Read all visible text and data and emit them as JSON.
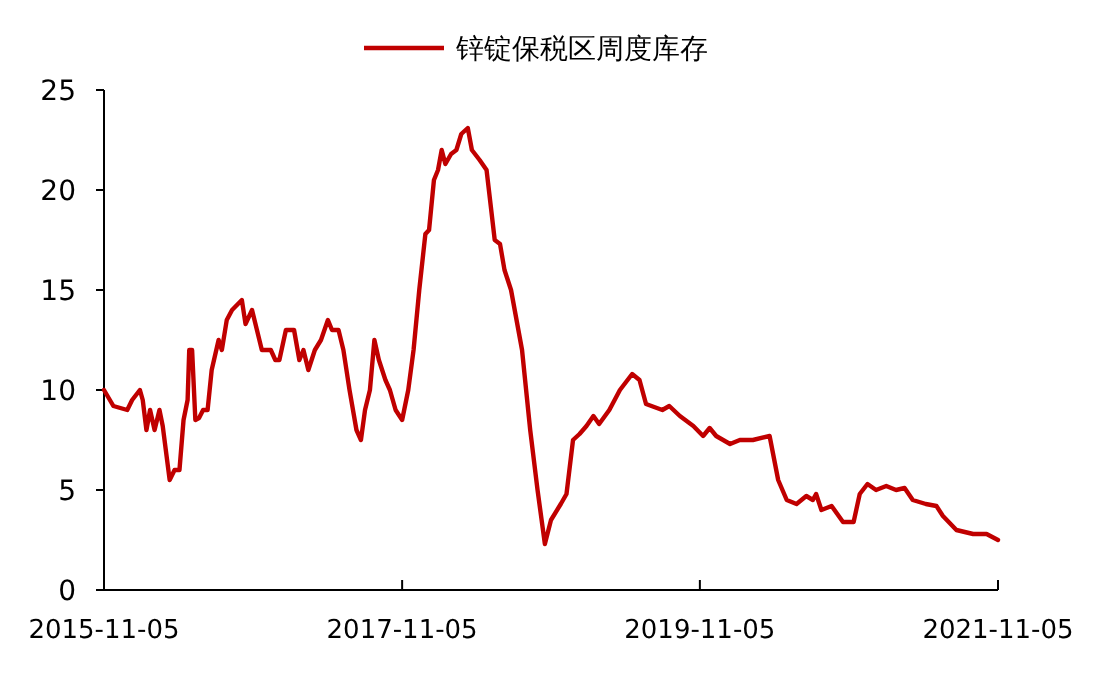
{
  "chart_data": {
    "type": "line",
    "legend": "top",
    "xlim": [
      "2015-11-05",
      "2021-11-05"
    ],
    "xticks": [
      "2015-11-05",
      "2017-11-05",
      "2019-11-05",
      "2021-11-05"
    ],
    "ylim": [
      0,
      25
    ],
    "yticks": [
      0,
      5,
      10,
      15,
      20,
      25
    ],
    "grid": false,
    "line_style": "solid",
    "marker": "none",
    "series": [
      {
        "name": "锌锭保税区周度库存",
        "color": "#c00000",
        "x": [
          "2015-11-05",
          "2015-11-28",
          "2016-01-01",
          "2016-01-13",
          "2016-02-01",
          "2016-02-08",
          "2016-02-17",
          "2016-02-26",
          "2016-03-08",
          "2016-03-20",
          "2016-03-28",
          "2016-04-14",
          "2016-04-26",
          "2016-05-08",
          "2016-05-18",
          "2016-05-28",
          "2016-06-01",
          "2016-06-08",
          "2016-06-16",
          "2016-06-25",
          "2016-07-05",
          "2016-07-16",
          "2016-07-26",
          "2016-08-12",
          "2016-08-20",
          "2016-09-01",
          "2016-09-14",
          "2016-10-08",
          "2016-10-17",
          "2016-11-02",
          "2016-11-14",
          "2016-11-26",
          "2016-12-18",
          "2016-12-29",
          "2017-01-08",
          "2017-01-24",
          "2017-02-13",
          "2017-02-26",
          "2017-03-08",
          "2017-03-20",
          "2017-04-05",
          "2017-04-20",
          "2017-05-07",
          "2017-05-17",
          "2017-06-02",
          "2017-06-14",
          "2017-06-29",
          "2017-07-16",
          "2017-07-27",
          "2017-08-06",
          "2017-08-18",
          "2017-08-29",
          "2017-09-09",
          "2017-09-25",
          "2017-10-06",
          "2017-10-20",
          "2017-11-05",
          "2017-11-20",
          "2017-12-03",
          "2017-12-17",
          "2018-01-01",
          "2018-01-10",
          "2018-01-22",
          "2018-02-01",
          "2018-02-10",
          "2018-02-19",
          "2018-03-05",
          "2018-03-18",
          "2018-03-30",
          "2018-04-15",
          "2018-04-25",
          "2018-05-14",
          "2018-05-31",
          "2018-06-20",
          "2018-07-03",
          "2018-07-14",
          "2018-07-30",
          "2018-08-26",
          "2018-09-15",
          "2018-10-03",
          "2018-10-21",
          "2018-11-05",
          "2018-11-29",
          "2018-12-13",
          "2018-12-29",
          "2019-01-14",
          "2019-01-31",
          "2019-02-17",
          "2019-03-03",
          "2019-03-28",
          "2019-04-23",
          "2019-05-23",
          "2019-06-10",
          "2019-06-26",
          "2019-08-05",
          "2019-08-22",
          "2019-09-17",
          "2019-10-20",
          "2019-11-13",
          "2019-11-29",
          "2019-12-15",
          "2020-01-18",
          "2020-02-11",
          "2020-03-14",
          "2020-04-24",
          "2020-05-15",
          "2020-06-05",
          "2020-06-29",
          "2020-07-23",
          "2020-08-08",
          "2020-08-16",
          "2020-08-29",
          "2020-09-23",
          "2020-10-21",
          "2020-11-16",
          "2020-12-01",
          "2020-12-20",
          "2021-01-10",
          "2021-02-04",
          "2021-02-28",
          "2021-03-21",
          "2021-04-10",
          "2021-05-12",
          "2021-06-07",
          "2021-06-23",
          "2021-07-26",
          "2021-09-05",
          "2021-10-08",
          "2021-11-05"
        ],
        "values": [
          10,
          9.2,
          9,
          9.5,
          10,
          9.5,
          8,
          9,
          8,
          9,
          8.2,
          5.5,
          6,
          6,
          8.5,
          9.5,
          12,
          12,
          8.5,
          8.6,
          9,
          9,
          11,
          12.5,
          12,
          13.5,
          14,
          14.5,
          13.3,
          14,
          13,
          12,
          12,
          11.5,
          11.5,
          13,
          13,
          11.5,
          12,
          11,
          12,
          12.5,
          13.5,
          13,
          13,
          12,
          10,
          8,
          7.5,
          9,
          10,
          12.5,
          11.5,
          10.5,
          10,
          9,
          8.5,
          10,
          12,
          15,
          17.8,
          18,
          20.5,
          21,
          22,
          21.3,
          21.8,
          22,
          22.8,
          23.1,
          22,
          21.5,
          21,
          17.5,
          17.3,
          16,
          15,
          12,
          8,
          5,
          2.3,
          3.5,
          4.3,
          4.8,
          7.5,
          7.8,
          8.2,
          8.7,
          8.3,
          9,
          10,
          10.8,
          10.5,
          9.3,
          9,
          9.2,
          8.7,
          8.2,
          7.7,
          8.1,
          7.7,
          7.3,
          7.5,
          7.5,
          7.7,
          5.5,
          4.5,
          4.3,
          4.7,
          4.5,
          4.8,
          4,
          4.2,
          3.4,
          3.4,
          4.8,
          5.3,
          5,
          5.2,
          5,
          5.1,
          4.5,
          4.3,
          4.2,
          3.7,
          3,
          2.8,
          2.8,
          2.5
        ]
      }
    ]
  }
}
